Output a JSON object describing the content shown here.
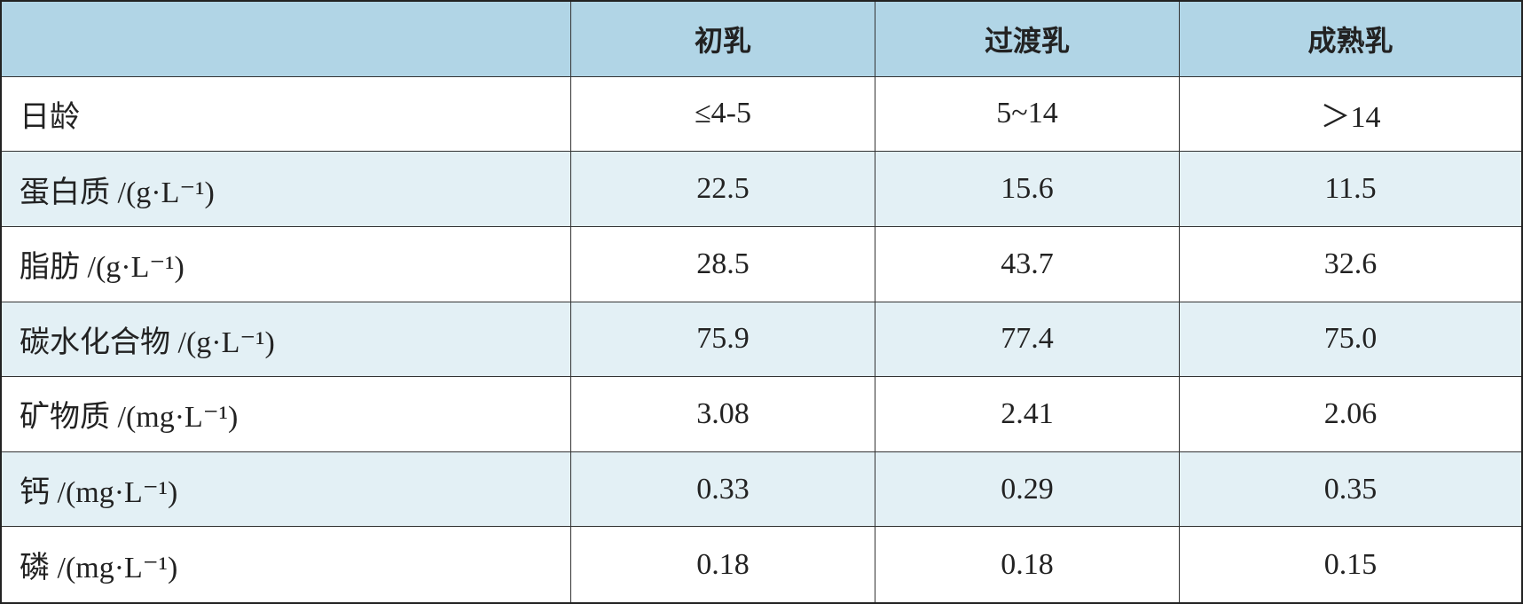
{
  "table": {
    "header": [
      "初乳",
      "过渡乳",
      "成熟乳"
    ],
    "rows": [
      [
        "日龄",
        "≤4-5",
        "5~14",
        "＞14"
      ],
      [
        "蛋白质 /(g·L⁻¹)",
        "22.5",
        "15.6",
        "11.5"
      ],
      [
        "脂肪 /(g·L⁻¹)",
        "28.5",
        "43.7",
        "32.6"
      ],
      [
        "碳水化合物 /(g·L⁻¹)",
        "75.9",
        "77.4",
        "75.0"
      ],
      [
        "矿物质 /(mg·L⁻¹)",
        "3.08",
        "2.41",
        "2.06"
      ],
      [
        "钙 /(mg·L⁻¹)",
        "0.33",
        "0.29",
        "0.35"
      ],
      [
        "磷 /(mg·L⁻¹)",
        "0.18",
        "0.18",
        "0.15"
      ]
    ]
  }
}
